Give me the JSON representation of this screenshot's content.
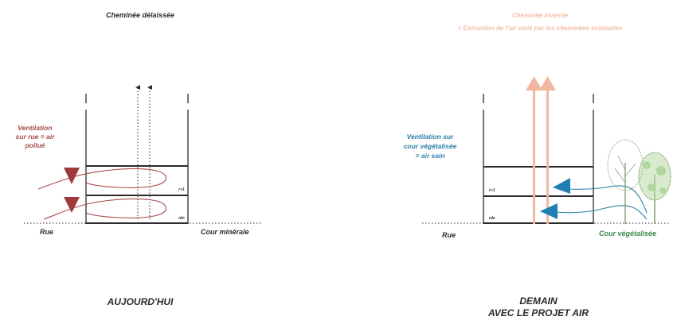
{
  "colors": {
    "ink": "#2b2b2b",
    "polluted": "#a84a48",
    "polluted_arrow": "#9e3b3a",
    "clean": "#2b7fa8",
    "clean_arrow": "#1f7fb4",
    "extract": "#f0b8a0",
    "extract_text": "#f2bfa8",
    "green_text": "#3c8a4e",
    "tree_stroke": "#6f8f62",
    "tree_fill": "#b9d9a8"
  },
  "icons": {
    "tree_left": "tree-icon",
    "tree_right": "tree-icon"
  },
  "left": {
    "chimney_label": "Cheminée délaissée",
    "ventilation_line1": "Ventilation",
    "ventilation_line2": "sur rue = air",
    "ventilation_line3": "pollué",
    "floor_upper": "r+1",
    "floor_ground": "rdc",
    "street_label": "Rue",
    "court_label": "Cour minérale",
    "title": "AUJOURD'HUI"
  },
  "right": {
    "chimney_line1": "Cheminée investie",
    "chimney_line2": "= Extraction de l'air vicié par les cheminées existantes",
    "ventilation_line1": "Ventilation sur",
    "ventilation_line2": "cour végétalisée",
    "ventilation_line3": "= air sain",
    "floor_upper": "r+1",
    "floor_ground": "rdc",
    "street_label": "Rue",
    "court_label": "Cour végétalisée",
    "title_line1": "DEMAIN",
    "title_line2": "AVEC LE PROJET AIR"
  }
}
